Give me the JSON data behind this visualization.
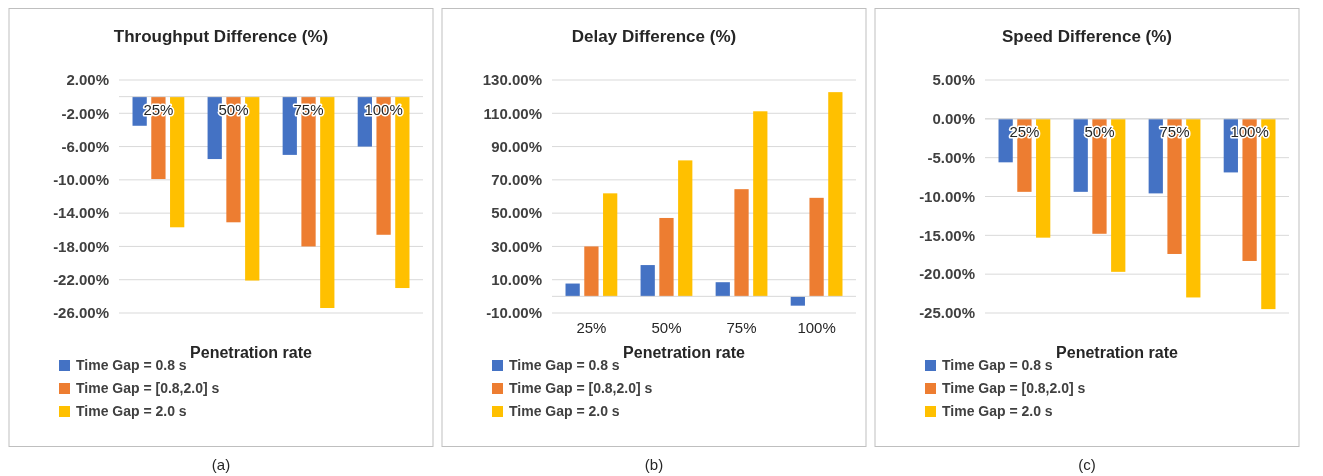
{
  "chart_data": [
    {
      "type": "bar",
      "title": "Throughput Difference (%)",
      "xlabel": "Penetration rate",
      "categories": [
        "25%",
        "50%",
        "75%",
        "100%"
      ],
      "series": [
        {
          "name": "Time Gap = 0.8 s",
          "color": "#4472c4",
          "values": [
            -3.5,
            -7.5,
            -7.0,
            -6.0
          ]
        },
        {
          "name": "Time Gap = [0.8,2.0] s",
          "color": "#ed7d31",
          "values": [
            -9.9,
            -15.1,
            -18.0,
            -16.6
          ]
        },
        {
          "name": "Time Gap = 2.0 s",
          "color": "#ffc000",
          "values": [
            -15.7,
            -22.1,
            -25.4,
            -23.0
          ]
        }
      ],
      "ylim": [
        -26,
        2
      ],
      "yticks": [
        {
          "value": 2,
          "label": "2.00%"
        },
        {
          "value": -2,
          "label": "-2.00%"
        },
        {
          "value": -6,
          "label": "-6.00%"
        },
        {
          "value": -10,
          "label": "-10.00%"
        },
        {
          "value": -14,
          "label": "-14.00%"
        },
        {
          "value": -18,
          "label": "-18.00%"
        },
        {
          "value": -22,
          "label": "-22.00%"
        },
        {
          "value": -26,
          "label": "-26.00%"
        }
      ],
      "grid": "y",
      "legend": "bottom",
      "annotations": [
        "(a)"
      ]
    },
    {
      "type": "bar",
      "title": "Delay Difference (%)",
      "xlabel": "Penetration rate",
      "categories": [
        "25%",
        "50%",
        "75%",
        "100%"
      ],
      "series": [
        {
          "name": "Time Gap = 0.8 s",
          "color": "#4472c4",
          "values": [
            7.7,
            18.8,
            8.5,
            -5.6
          ]
        },
        {
          "name": "Time Gap = [0.8,2.0] s",
          "color": "#ed7d31",
          "values": [
            30,
            47.1,
            64.4,
            59.2
          ]
        },
        {
          "name": "Time Gap = 2.0 s",
          "color": "#ffc000",
          "values": [
            61.9,
            81.7,
            111.2,
            122.7
          ]
        }
      ],
      "ylim": [
        -10,
        130
      ],
      "yticks": [
        {
          "value": 130,
          "label": "130.00%"
        },
        {
          "value": 110,
          "label": "110.00%"
        },
        {
          "value": 90,
          "label": "90.00%"
        },
        {
          "value": 70,
          "label": "70.00%"
        },
        {
          "value": 50,
          "label": "50.00%"
        },
        {
          "value": 30,
          "label": "30.00%"
        },
        {
          "value": 10,
          "label": "10.00%"
        },
        {
          "value": -10,
          "label": "-10.00%"
        }
      ],
      "grid": "y",
      "legend": "bottom",
      "annotations": [
        "(b)"
      ]
    },
    {
      "type": "bar",
      "title": "Speed Difference (%)",
      "xlabel": "Penetration rate",
      "categories": [
        "25%",
        "50%",
        "75%",
        "100%"
      ],
      "series": [
        {
          "name": "Time Gap = 0.8 s",
          "color": "#4472c4",
          "values": [
            -5.6,
            -9.4,
            -9.6,
            -6.9
          ]
        },
        {
          "name": "Time Gap = [0.8,2.0] s",
          "color": "#ed7d31",
          "values": [
            -9.4,
            -14.8,
            -17.4,
            -18.3
          ]
        },
        {
          "name": "Time Gap = 2.0 s",
          "color": "#ffc000",
          "values": [
            -15.3,
            -19.7,
            -23.0,
            -24.5
          ]
        }
      ],
      "ylim": [
        -25,
        5
      ],
      "yticks": [
        {
          "value": 5,
          "label": "5.00%"
        },
        {
          "value": 0,
          "label": "0.00%"
        },
        {
          "value": -5,
          "label": "-5.00%"
        },
        {
          "value": -10,
          "label": "-10.00%"
        },
        {
          "value": -15,
          "label": "-15.00%"
        },
        {
          "value": -20,
          "label": "-20.00%"
        },
        {
          "value": -25,
          "label": "-25.00%"
        }
      ],
      "grid": "y",
      "legend": "bottom",
      "annotations": [
        "(c)"
      ]
    }
  ]
}
